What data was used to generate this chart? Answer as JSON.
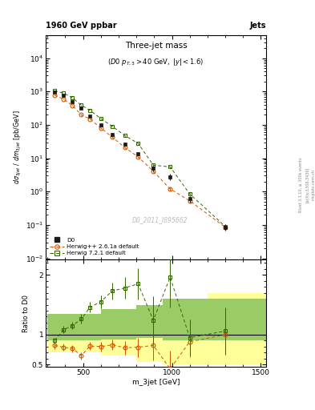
{
  "title_main": "Three-jet mass",
  "title_sub": "(D0 p_{T,3} > 40 GeV, |y| < 1.6)",
  "header_left": "1960 GeV ppbar",
  "header_right": "Jets",
  "ylabel_main": "dσ_3jet / dm_3jet [pb/GeV]",
  "ylabel_ratio": "Ratio to D0",
  "xlabel": "m_3jet [GeV]",
  "watermark": "D0_2011_I895662",
  "rivet_label": "Rivet 3.1.10, ≥ 300k events",
  "arxiv_label": "[arXiv:1306.3436]",
  "mcplots_label": "mcplots.cern.ch",
  "d0_x": [
    340,
    390,
    440,
    490,
    540,
    600,
    665,
    735,
    810,
    895,
    990,
    1100,
    1300
  ],
  "d0_y": [
    950,
    750,
    500,
    310,
    185,
    100,
    52,
    27,
    14,
    5.0,
    2.8,
    0.6,
    0.085
  ],
  "d0_yerr_lo": [
    50,
    45,
    30,
    20,
    12,
    7,
    4,
    2.5,
    1.5,
    0.9,
    0.6,
    0.12,
    0.018
  ],
  "d0_yerr_hi": [
    50,
    45,
    30,
    20,
    12,
    7,
    4,
    2.5,
    1.5,
    0.9,
    0.6,
    0.12,
    0.018
  ],
  "hwpp_x": [
    340,
    390,
    440,
    490,
    540,
    600,
    665,
    735,
    810,
    895,
    990,
    1100,
    1300
  ],
  "hwpp_y": [
    780,
    590,
    385,
    200,
    150,
    80,
    43,
    21,
    11,
    4.1,
    1.2,
    0.53,
    0.085
  ],
  "hwpp_yerr": [
    15,
    12,
    9,
    6,
    5,
    3,
    2,
    1,
    0.6,
    0.3,
    0.15,
    0.05,
    0.008
  ],
  "hw7_x": [
    340,
    390,
    440,
    490,
    540,
    600,
    665,
    735,
    810,
    895,
    990,
    1100,
    1300
  ],
  "hw7_y": [
    1050,
    900,
    650,
    390,
    270,
    155,
    90,
    48,
    28,
    6.2,
    5.5,
    0.85,
    0.09
  ],
  "hw7_yerr": [
    15,
    12,
    9,
    6,
    5,
    3,
    2,
    1,
    0.6,
    0.3,
    0.15,
    0.05,
    0.008
  ],
  "ratio_hwpp_x": [
    340,
    390,
    440,
    490,
    540,
    600,
    665,
    735,
    810,
    895,
    990,
    1100,
    1300
  ],
  "ratio_hwpp_y": [
    0.82,
    0.79,
    0.77,
    0.65,
    0.81,
    0.8,
    0.83,
    0.78,
    0.79,
    0.82,
    0.43,
    0.88,
    1.0
  ],
  "ratio_hwpp_yerr": [
    0.06,
    0.06,
    0.06,
    0.06,
    0.07,
    0.08,
    0.09,
    0.11,
    0.16,
    0.25,
    0.3,
    0.25,
    0.3
  ],
  "ratio_hw7_x": [
    340,
    390,
    440,
    490,
    540,
    600,
    665,
    735,
    810,
    895,
    990,
    1100,
    1300
  ],
  "ratio_hw7_y": [
    0.9,
    1.08,
    1.15,
    1.26,
    1.46,
    1.55,
    1.73,
    1.78,
    1.85,
    1.24,
    1.96,
    0.95,
    1.06
  ],
  "ratio_hw7_yerr": [
    0.05,
    0.06,
    0.06,
    0.08,
    0.09,
    0.11,
    0.14,
    0.18,
    0.26,
    0.4,
    0.5,
    0.3,
    0.4
  ],
  "band_yellow_edges": [
    300,
    600,
    800,
    950,
    1200,
    1550
  ],
  "band_yellow_lo": [
    0.7,
    0.65,
    0.55,
    0.5,
    0.5,
    0.5
  ],
  "band_yellow_hi": [
    1.3,
    1.35,
    1.45,
    1.6,
    1.7,
    1.7
  ],
  "band_green_edges": [
    300,
    600,
    800,
    950,
    1200,
    1550
  ],
  "band_green_lo": [
    0.9,
    0.92,
    0.95,
    0.9,
    0.9,
    0.9
  ],
  "band_green_hi": [
    1.35,
    1.42,
    1.5,
    1.6,
    1.6,
    1.6
  ],
  "color_d0": "#1a1a1a",
  "color_hwpp": "#cc5500",
  "color_hw7": "#336600",
  "color_band_yellow": "#ffff99",
  "color_band_green": "#99cc66",
  "bg_color": "#ffffff",
  "xlim": [
    290,
    1530
  ],
  "ylim_main": [
    0.009,
    50000
  ],
  "ylim_ratio": [
    0.46,
    2.25
  ]
}
